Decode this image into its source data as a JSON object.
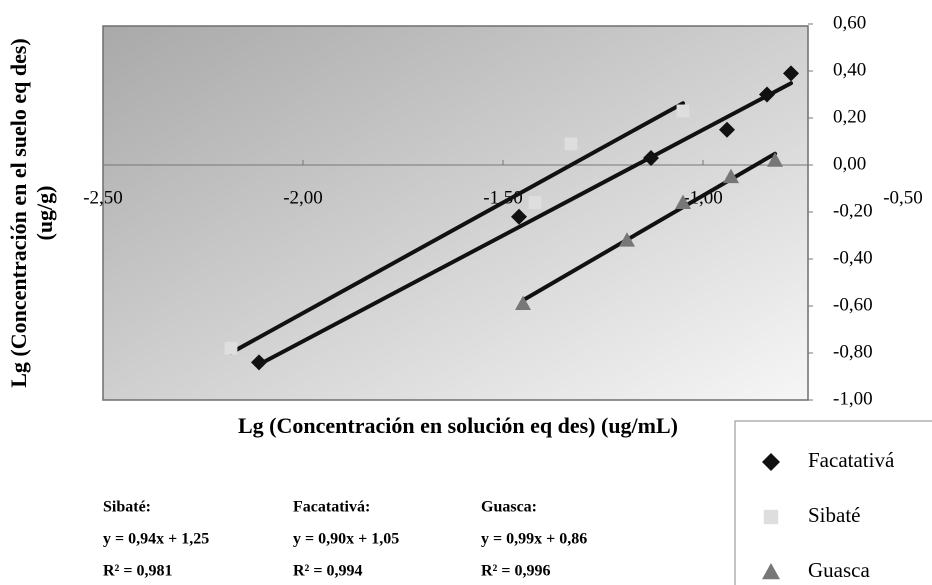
{
  "chart_data": {
    "type": "scatter",
    "x_label": "Lg (Concentración en solución eq des) (ug/mL)",
    "y_label": "Lg (Concentración en el suelo eq des) (ug/g)",
    "xlim": [
      -2.5,
      -0.5
    ],
    "ylim": [
      -1.0,
      0.6
    ],
    "xticks": [
      {
        "value": -2.5,
        "label": "-2,50"
      },
      {
        "value": -2.0,
        "label": "-2,00"
      },
      {
        "value": -1.5,
        "label": "-1,50"
      },
      {
        "value": -1.0,
        "label": "-1,00"
      },
      {
        "value": -0.5,
        "label": "-0,50"
      }
    ],
    "yticks": [
      {
        "value": 0.6,
        "label": "0,60"
      },
      {
        "value": 0.4,
        "label": "0,40"
      },
      {
        "value": 0.2,
        "label": "0,20"
      },
      {
        "value": 0.0,
        "label": "0,00"
      },
      {
        "value": -0.2,
        "label": "-0,20"
      },
      {
        "value": -0.4,
        "label": "-0,40"
      },
      {
        "value": -0.6,
        "label": "-0,60"
      },
      {
        "value": -0.8,
        "label": "-0,80"
      },
      {
        "value": -1.0,
        "label": "-1,00"
      }
    ],
    "legend": "bottom-right",
    "series": [
      {
        "name": "Facatativá",
        "marker": "diamond",
        "color": "#111111",
        "x": [
          -2.11,
          -1.46,
          -1.13,
          -0.94,
          -0.84,
          -0.78
        ],
        "values": [
          -0.84,
          -0.22,
          0.03,
          0.15,
          0.3,
          0.39
        ],
        "trendline": {
          "slope": 0.9,
          "intercept": 1.05
        }
      },
      {
        "name": "Sibaté",
        "marker": "square",
        "color": "#dedede",
        "x": [
          -2.18,
          -1.42,
          -1.33,
          -1.05
        ],
        "values": [
          -0.78,
          -0.16,
          0.09,
          0.23
        ],
        "trendline": {
          "slope": 0.94,
          "intercept": 1.25
        }
      },
      {
        "name": "Guasca",
        "marker": "triangle",
        "color": "#777777",
        "x": [
          -1.45,
          -1.19,
          -1.05,
          -0.93,
          -0.82
        ],
        "values": [
          -0.59,
          -0.32,
          -0.16,
          -0.05,
          0.02
        ],
        "trendline": {
          "slope": 0.99,
          "intercept": 0.86
        }
      }
    ],
    "annotations": [
      [
        "Sibaté:",
        "y = 0,94x + 1,25",
        "R² = 0,981"
      ],
      [
        "Facatativá:",
        "y = 0,90x + 1,05",
        "R² = 0,994"
      ],
      [
        "Guasca:",
        "y = 0,99x + 0,86",
        "R² = 0,996"
      ]
    ]
  }
}
